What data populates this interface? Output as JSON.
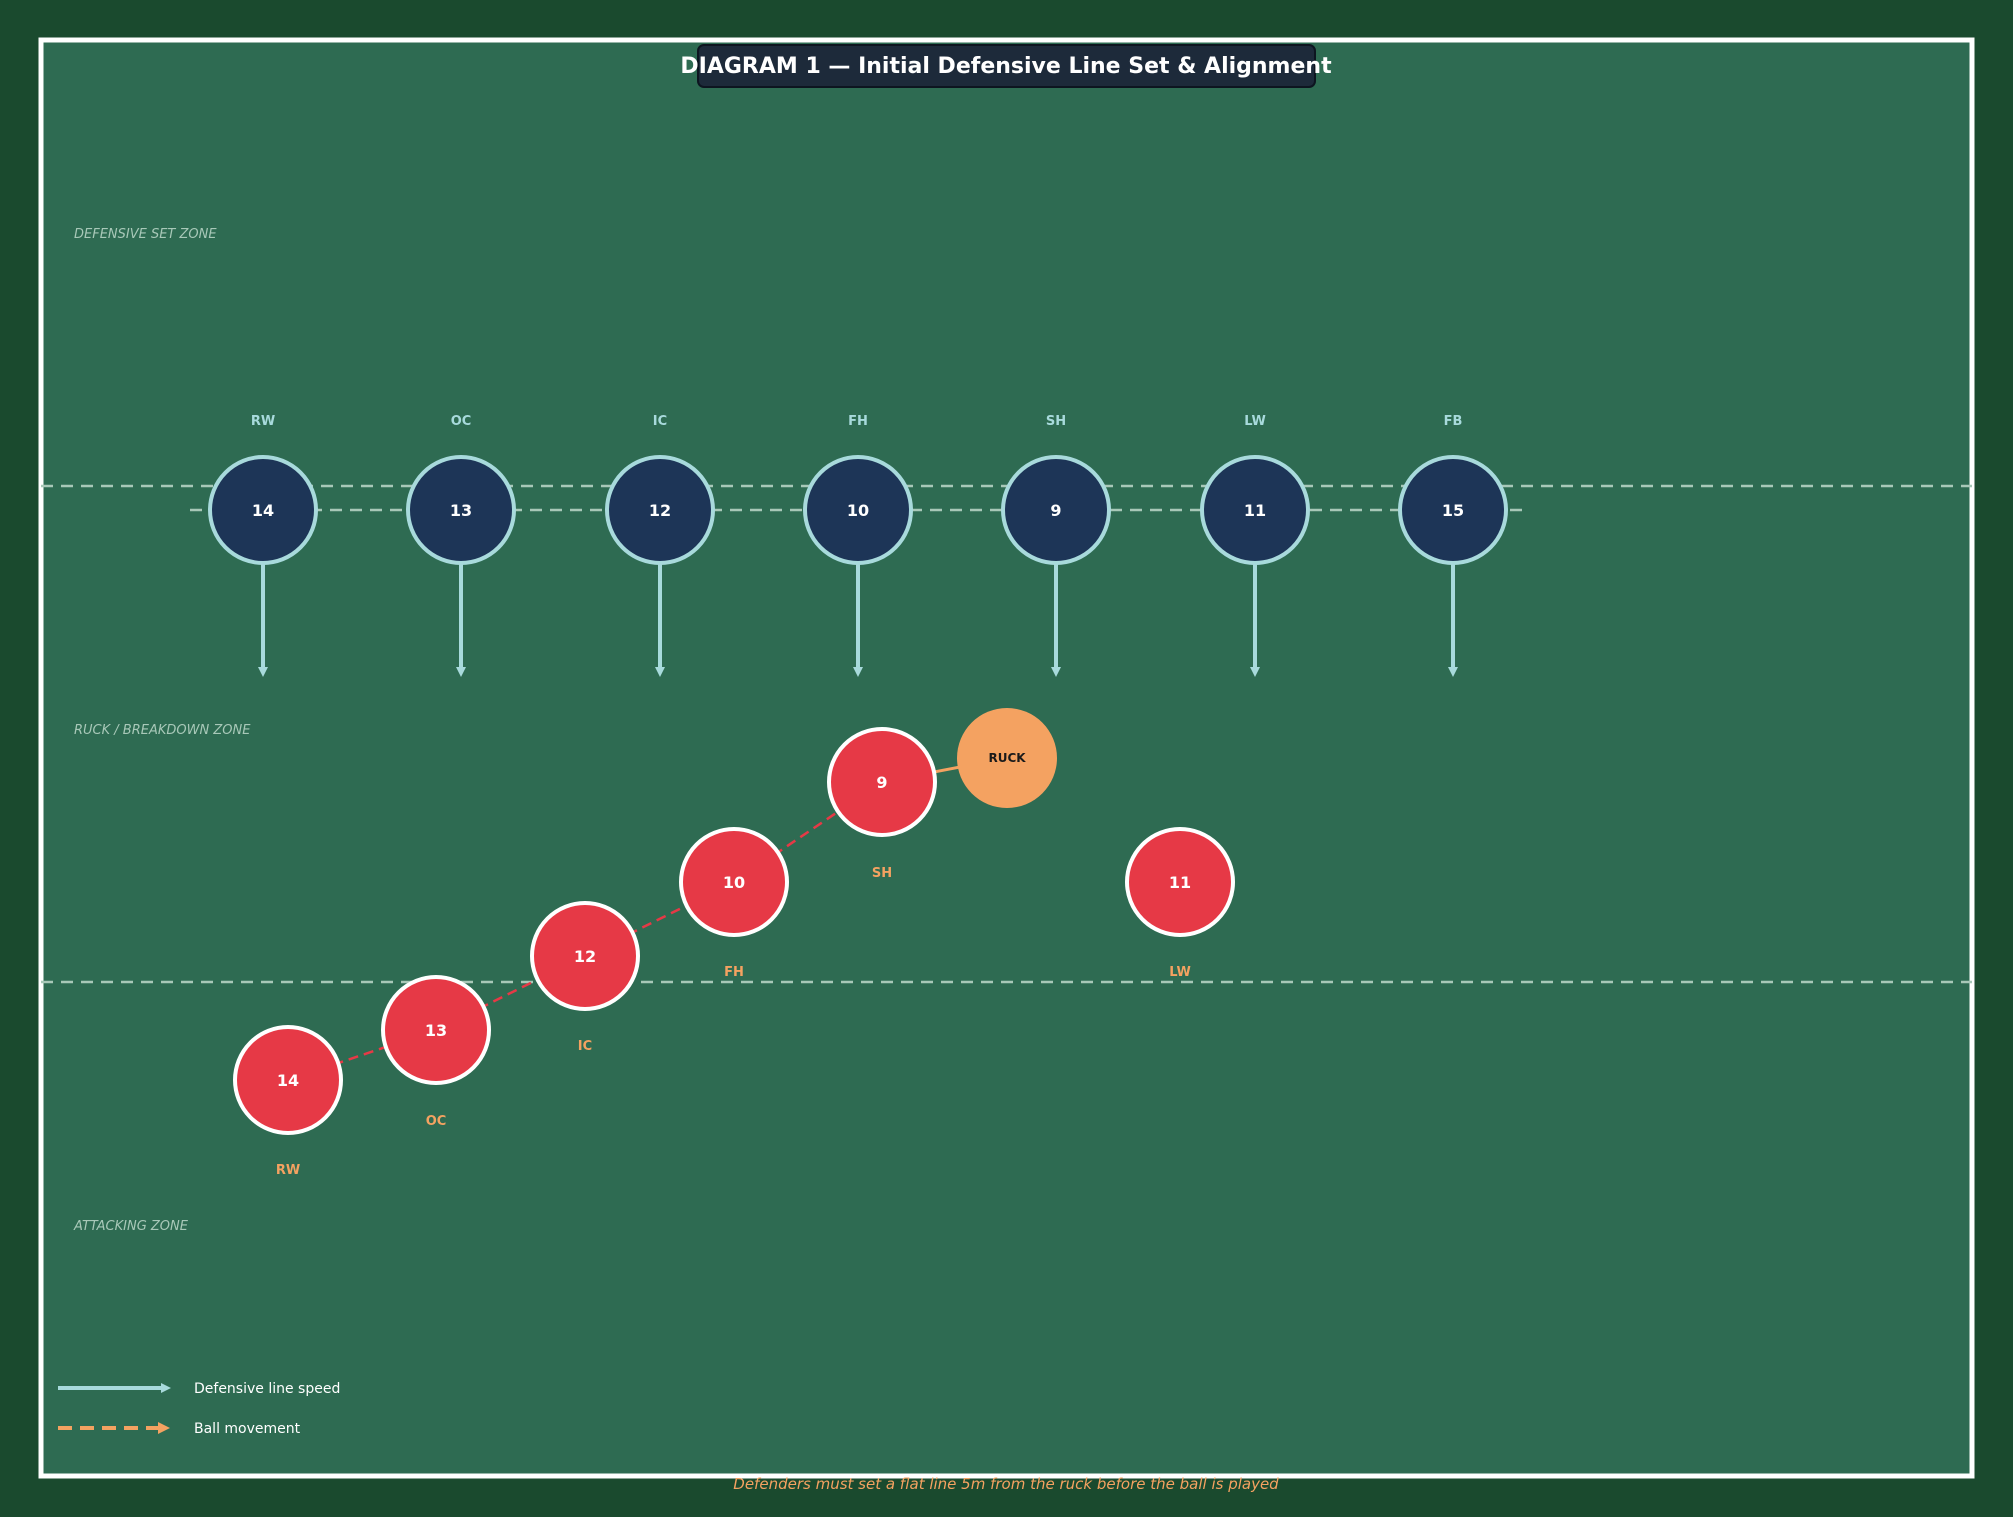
{
  "title": "DIAGRAM 1 — Initial Defensive Line Set & Alignment",
  "colors": {
    "background": "#1a4a2e",
    "field": "#2e6b52",
    "field_border": "#ffffff",
    "defender_fill": "#1d3557",
    "defender_stroke": "#a8dadc",
    "attacker_fill": "#e63946",
    "attacker_stroke": "#ffffff",
    "ruck_fill": "#f4a261",
    "line_speed": "#a8dadc",
    "ball_movement": "#f4a261",
    "zone_label": "#a8c8b8",
    "footnote": "#f4a261"
  },
  "zones": {
    "defensive_set": "DEFENSIVE SET ZONE",
    "ruck_breakdown": "RUCK / BREAKDOWN ZONE",
    "attacking": "ATTACKING ZONE"
  },
  "defenders": [
    {
      "number": "14",
      "position": "RW"
    },
    {
      "number": "13",
      "position": "OC"
    },
    {
      "number": "12",
      "position": "IC"
    },
    {
      "number": "10",
      "position": "FH"
    },
    {
      "number": "9",
      "position": "SH"
    },
    {
      "number": "11",
      "position": "LW"
    },
    {
      "number": "15",
      "position": "FB"
    }
  ],
  "attackers": [
    {
      "number": "14",
      "position": "RW"
    },
    {
      "number": "13",
      "position": "OC"
    },
    {
      "number": "12",
      "position": "IC"
    },
    {
      "number": "10",
      "position": "FH"
    },
    {
      "number": "9",
      "position": "SH"
    },
    {
      "number": "11",
      "position": "LW"
    }
  ],
  "ruck": {
    "label": "RUCK"
  },
  "legend": {
    "line_speed": "Defensive line speed",
    "ball_movement": "Ball movement"
  },
  "footnote": "Defenders must set a flat line 5m from the ruck before the ball is played"
}
